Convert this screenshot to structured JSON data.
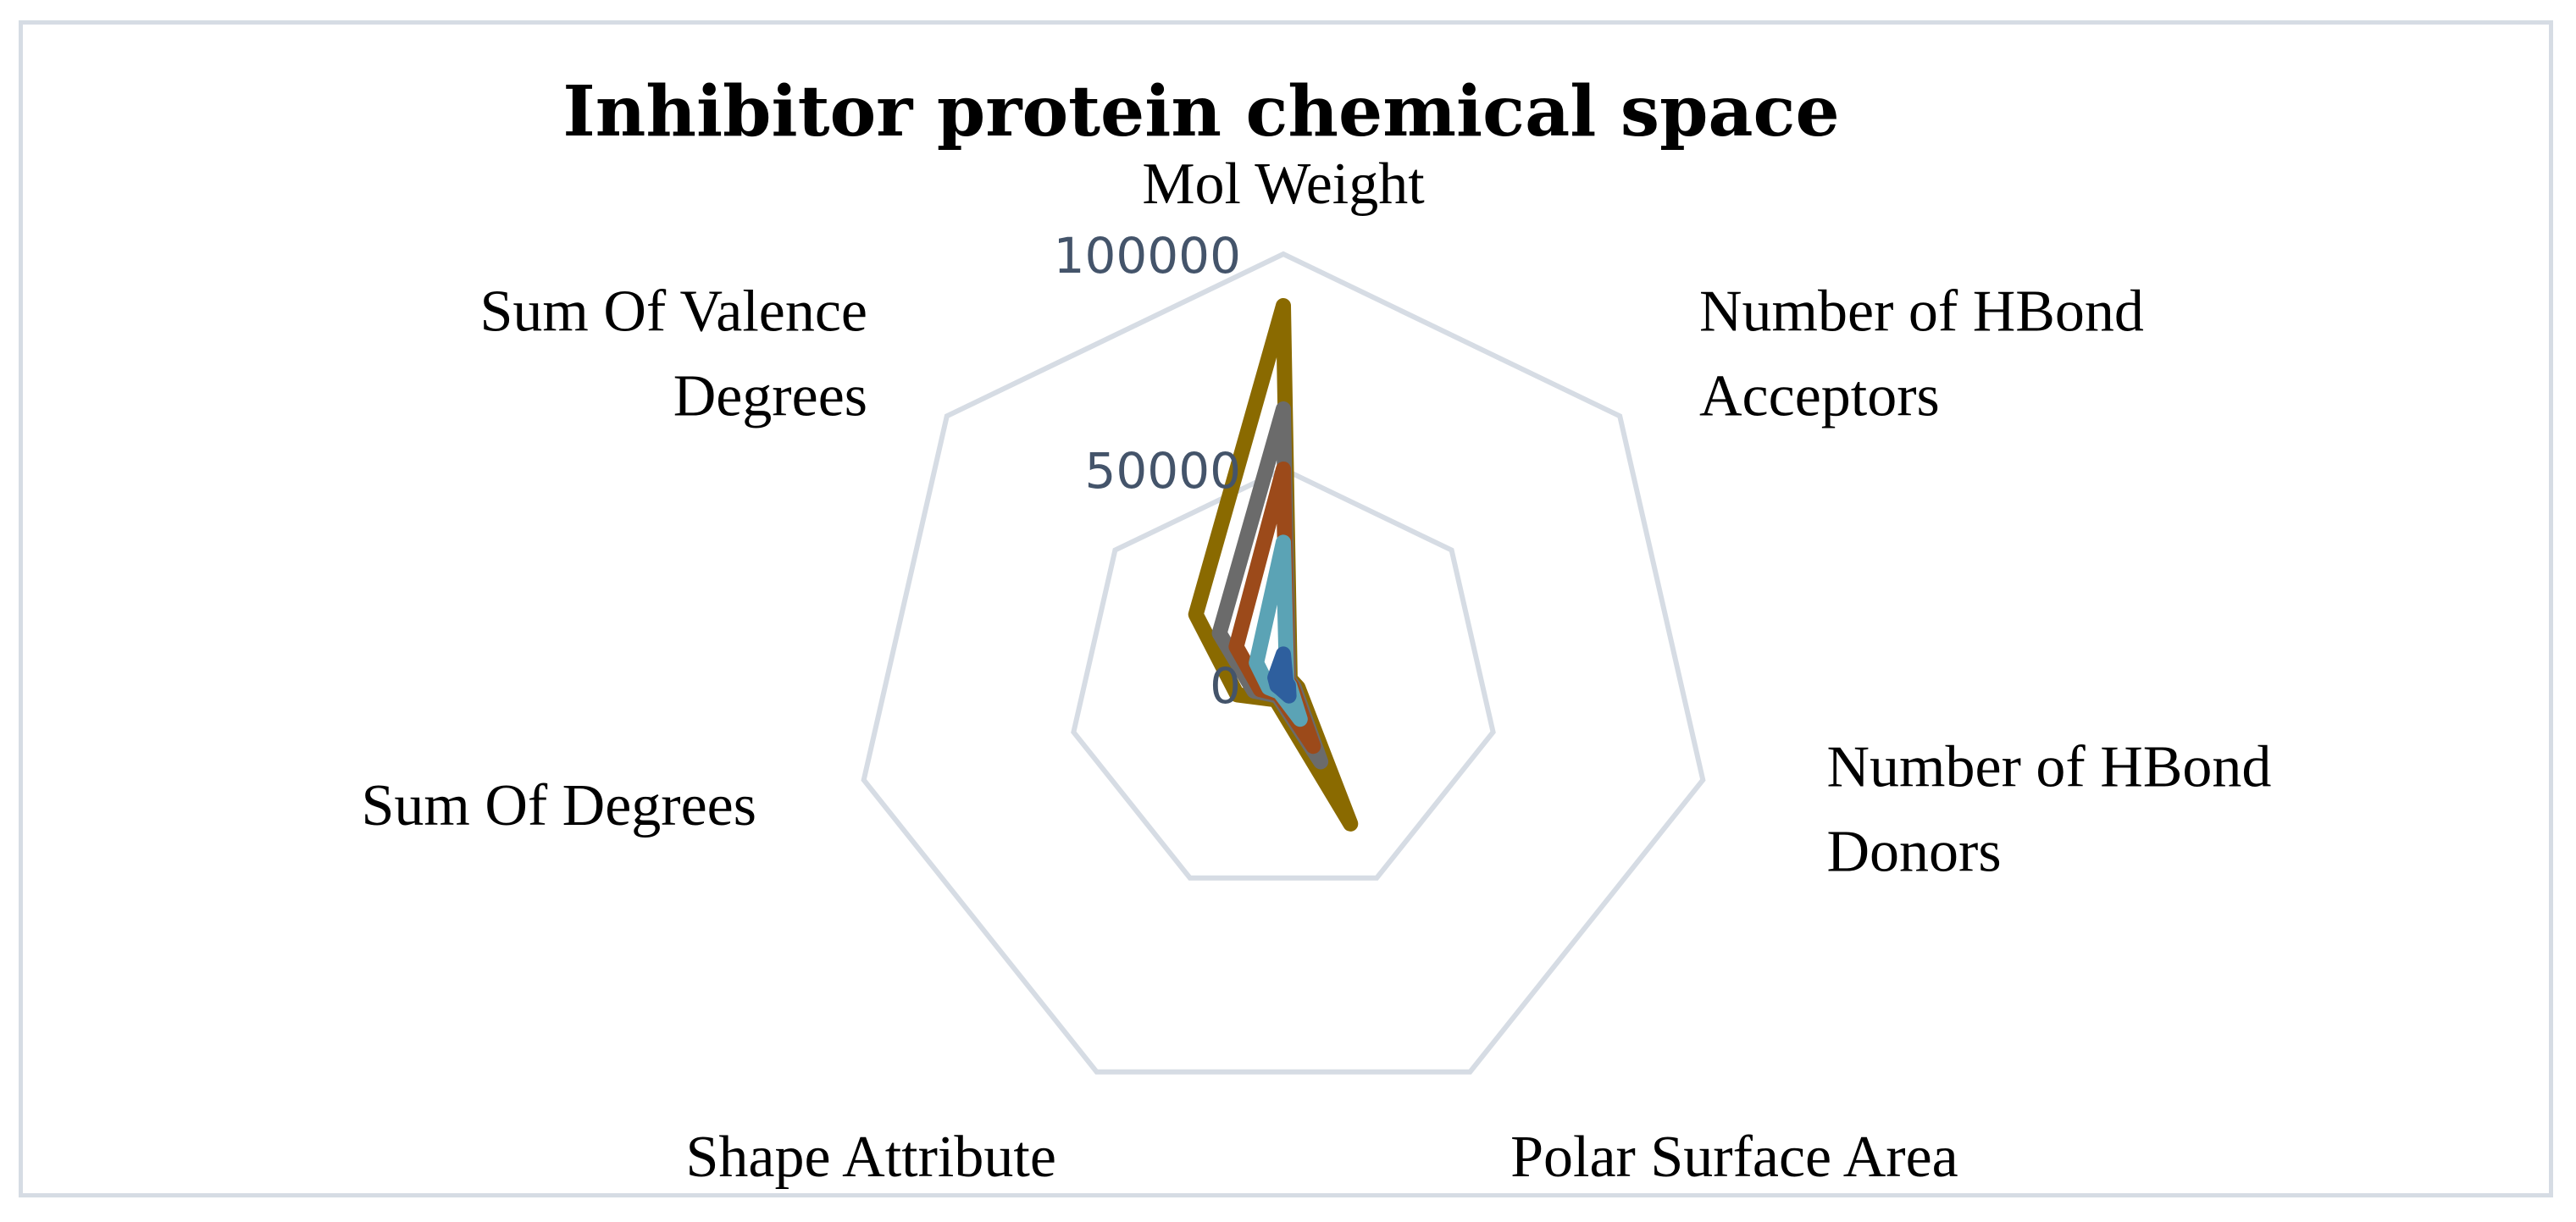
{
  "chart_data": {
    "type": "radar",
    "title": "Inhibitor protein chemical space",
    "axes": [
      [
        "Mol Weight"
      ],
      [
        "Number of HBond",
        "Acceptors"
      ],
      [
        "Number of HBond",
        "Donors"
      ],
      [
        "Polar Surface Area"
      ],
      [
        "Shape Attribute"
      ],
      [
        "Sum Of Degrees"
      ],
      [
        "Sum Of Valence",
        "Degrees"
      ]
    ],
    "ticks": [
      "0",
      "50000",
      "100000"
    ],
    "rlim": [
      0,
      100000
    ],
    "grid": true,
    "legend": "none",
    "series": [
      {
        "color": "#8a6a00",
        "values": [
          88000,
          2000,
          3500,
          36000,
          4000,
          11000,
          26000
        ]
      },
      {
        "color": "#6b6b6b",
        "values": [
          64000,
          1500,
          2500,
          20000,
          3000,
          7000,
          19000
        ]
      },
      {
        "color": "#9c4a1a",
        "values": [
          50000,
          1200,
          2000,
          16000,
          2500,
          5500,
          14000
        ]
      },
      {
        "color": "#5ba3b5",
        "values": [
          33000,
          1000,
          1500,
          9000,
          2000,
          3500,
          8000
        ]
      },
      {
        "color": "#2e5f9e",
        "values": [
          7000,
          800,
          1200,
          3000,
          1200,
          1500,
          2500
        ]
      }
    ]
  }
}
